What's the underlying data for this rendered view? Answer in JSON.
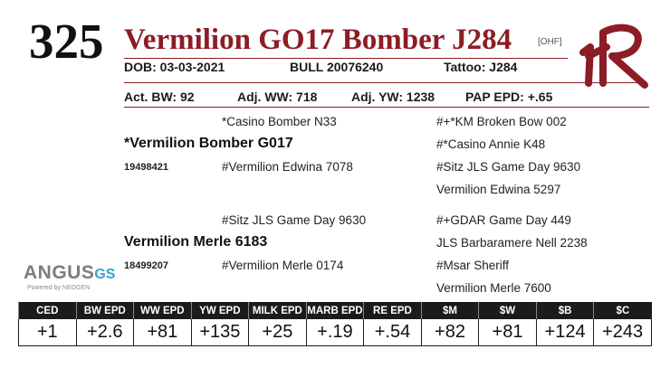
{
  "lot_number": "325",
  "animal_name": "Vermilion GO17 Bomber J284",
  "tag": "[OHF]",
  "brand_icon": "vr-brand-mark",
  "accent_color": "#8c1d25",
  "dob": "DOB:    03-03-2021",
  "sex_reg": "BULL   20076240",
  "tattoo": "Tattoo:     J284",
  "act_bw": "Act. BW: 92",
  "adj_ww": "Adj. WW: 718",
  "adj_yw": "Adj. YW: 1238",
  "pap_epd": "PAP EPD: +.65",
  "pedigree": {
    "sire": "*Vermilion Bomber G017",
    "sire_reg": "19498421",
    "sire_sire": "*Casino Bomber N33",
    "sire_dam": "#Vermilion Edwina 7078",
    "sss": "#+*KM Broken Bow 002",
    "ssd": "#*Casino Annie K48",
    "sds": "#Sitz JLS Game Day 9630",
    "sdd": "Vermilion Edwina 5297",
    "dam": "Vermilion Merle 6183",
    "dam_reg": "18499207",
    "dam_sire": "#Sitz JLS Game Day 9630",
    "dam_dam": "#Vermilion Merle 0174",
    "dss": "#+GDAR Game Day 449",
    "dsd": "JLS Barbaramere Nell 2238",
    "dds": "#Msar Sheriff",
    "ddd": "Vermilion Merle 7600"
  },
  "logo": {
    "angus": "ANGUS",
    "gs": "GS",
    "powered": "Powered by NEOGEN"
  },
  "epd_headers": [
    "CED",
    "BW EPD",
    "WW EPD",
    "YW EPD",
    "MILK EPD",
    "MARB EPD",
    "RE EPD",
    "$M",
    "$W",
    "$B",
    "$C"
  ],
  "epd_values": [
    "+1",
    "+2.6",
    "+81",
    "+135",
    "+25",
    "+.19",
    "+.54",
    "+82",
    "+81",
    "+124",
    "+243"
  ]
}
